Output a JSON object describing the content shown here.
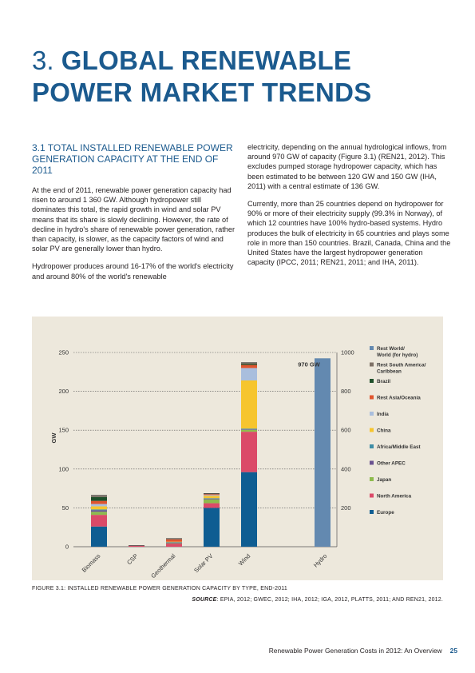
{
  "title": {
    "number": "3.",
    "line1": "GLOBAL RENEWABLE",
    "line2": "POWER MARKET TRENDS"
  },
  "section": {
    "heading": "3.1 TOTAL INSTALLED RENEWABLE POWER GENERATION CAPACITY AT THE END OF 2011"
  },
  "paragraphs": {
    "p1": "At the end of 2011, renewable power generation capacity had risen to around 1 360 GW. Although hydropower still dominates this total, the rapid growth in wind and solar PV means that its share is slowly declining. However, the rate of decline in hydro's share of renewable power generation, rather than capacity, is slower, as the capacity factors of wind and solar PV are generally lower than hydro.",
    "p2": "Hydropower produces around 16-17% of the world's electricity and around 80% of the world's renewable",
    "p3": "electricity, depending on the annual hydrological inflows, from around 970 GW of capacity (Figure 3.1) (REN21, 2012). This excludes pumped storage hydropower capacity, which has been estimated to be between 120 GW and 150 GW (IHA, 2011) with a central estimate of 136 GW.",
    "p4": "Currently, more than 25 countries depend on hydropower for 90% or more of their electricity supply (99.3% in Norway), of which 12 countries have 100% hydro-based systems. Hydro produces the bulk of electricity in 65 countries and plays some role in more than 150 countries. Brazil, Canada, China and the United States have the largest hydropower generation capacity (IPCC, 2011; REN21, 2011; and IHA, 2011)."
  },
  "chart_data": {
    "type": "bar",
    "stacked": true,
    "ylabel": "GW",
    "left_axis": {
      "min": 0,
      "max": 250,
      "ticks": [
        0,
        50,
        100,
        150,
        200,
        250
      ]
    },
    "right_axis": {
      "min": 0,
      "max": 1000,
      "ticks": [
        200,
        400,
        600,
        800,
        1000
      ]
    },
    "grid": true,
    "legend_position": "right",
    "categories": [
      "Biomass",
      "CSP",
      "Geothermal",
      "Solar PV",
      "Wind"
    ],
    "series": [
      {
        "name": "Europe",
        "color": "#0f5d92",
        "values": [
          26,
          0,
          0,
          50,
          96
        ]
      },
      {
        "name": "North America",
        "color": "#db4a68",
        "values": [
          15,
          1.5,
          4,
          6,
          52
        ]
      },
      {
        "name": "Japan",
        "color": "#8ebb4e",
        "values": [
          4,
          0,
          0.5,
          5,
          2.5
        ]
      },
      {
        "name": "Other APEC",
        "color": "#6a5290",
        "values": [
          2,
          0,
          1,
          1,
          0.5
        ]
      },
      {
        "name": "Africa/Middle East",
        "color": "#3e8da6",
        "values": [
          1,
          0,
          0.5,
          0.5,
          1
        ]
      },
      {
        "name": "China",
        "color": "#f6c52e",
        "values": [
          4,
          0,
          0.5,
          3,
          62
        ]
      },
      {
        "name": "India",
        "color": "#a9bedd",
        "values": [
          3,
          0,
          0,
          1,
          16
        ]
      },
      {
        "name": "Rest Asia/Oceania",
        "color": "#e0552e",
        "values": [
          4,
          0,
          3,
          1,
          4
        ]
      },
      {
        "name": "Brazil",
        "color": "#1e4f2a",
        "values": [
          5,
          0,
          0,
          0,
          1.5
        ]
      },
      {
        "name": "Rest South America/ Caribbean",
        "color": "#7e7166",
        "values": [
          2,
          0,
          1,
          1,
          1.5
        ]
      }
    ],
    "secondary_bar": {
      "category": "Hydro",
      "axis": "right",
      "value": 970,
      "label": "970 GW",
      "series": "Rest World/ World (for hydro)",
      "color": "#6389b0"
    },
    "legend": [
      {
        "name": "Rest World/",
        "name2": "World (for hydro)",
        "color": "#6389b0"
      },
      {
        "name": "Rest South America/",
        "name2": "Caribbean",
        "color": "#7e7166"
      },
      {
        "name": "Brazil",
        "color": "#1e4f2a"
      },
      {
        "name": "Rest Asia/Oceania",
        "color": "#e0552e"
      },
      {
        "name": "India",
        "color": "#a9bedd"
      },
      {
        "name": "China",
        "color": "#f6c52e"
      },
      {
        "name": "Africa/Middle East",
        "color": "#3e8da6"
      },
      {
        "name": "Other APEC",
        "color": "#6a5290"
      },
      {
        "name": "Japan",
        "color": "#8ebb4e"
      },
      {
        "name": "North America",
        "color": "#db4a68"
      },
      {
        "name": "Europe",
        "color": "#0f5d92"
      }
    ]
  },
  "figure": {
    "caption": "FIGURE 3.1: INSTALLED RENEWABLE POWER GENERATION CAPACITY BY TYPE, END-2011",
    "source_label": "SOURCE",
    "source_text": ": EPIA, 2012; GWEC, 2012; IHA, 2012; IGA, 2012, PLATTS, 2011; AND REN21, 2012."
  },
  "footer": {
    "text": "Renewable Power Generation Costs in 2012: An Overview",
    "page": "25"
  }
}
